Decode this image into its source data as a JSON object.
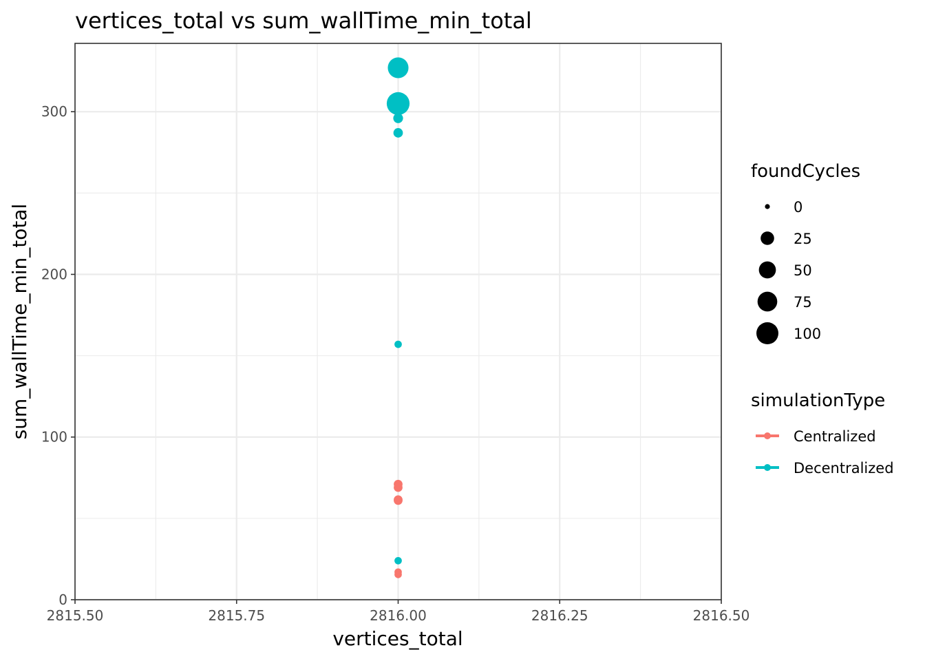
{
  "chart_data": {
    "type": "scatter",
    "title": "vertices_total  vs  sum_wallTime_min_total",
    "xlabel": "vertices_total",
    "ylabel": "sum_wallTime_min_total",
    "xlim": [
      2815.5,
      2816.5
    ],
    "ylim": [
      0,
      342
    ],
    "x_ticks": [
      "2815.50",
      "2815.75",
      "2816.00",
      "2816.25",
      "2816.50"
    ],
    "y_ticks": [
      "0",
      "100",
      "200",
      "300"
    ],
    "grid": true,
    "legend_placement": "right",
    "size_legend": {
      "title": "foundCycles",
      "entries": [
        {
          "label": "0",
          "value": 0
        },
        {
          "label": "25",
          "value": 25
        },
        {
          "label": "50",
          "value": 50
        },
        {
          "label": "75",
          "value": 75
        },
        {
          "label": "100",
          "value": 100
        }
      ]
    },
    "color_legend": {
      "title": "simulationType",
      "entries": [
        {
          "label": "Centralized",
          "color": "#F8766D"
        },
        {
          "label": "Decentralized",
          "color": "#00BFC4"
        }
      ]
    },
    "series": [
      {
        "name": "Centralized",
        "color": "#F8766D",
        "points": [
          {
            "x": 2816,
            "y": 71,
            "foundCycles": 5
          },
          {
            "x": 2816,
            "y": 69,
            "foundCycles": 5
          },
          {
            "x": 2816,
            "y": 61.5,
            "foundCycles": 5
          },
          {
            "x": 2816,
            "y": 61,
            "foundCycles": 5
          },
          {
            "x": 2816,
            "y": 17,
            "foundCycles": 2
          },
          {
            "x": 2816,
            "y": 15.5,
            "foundCycles": 2
          }
        ]
      },
      {
        "name": "Decentralized",
        "color": "#00BFC4",
        "points": [
          {
            "x": 2816,
            "y": 327,
            "foundCycles": 85
          },
          {
            "x": 2816,
            "y": 305,
            "foundCycles": 110
          },
          {
            "x": 2816,
            "y": 296,
            "foundCycles": 8
          },
          {
            "x": 2816,
            "y": 287,
            "foundCycles": 7
          },
          {
            "x": 2816,
            "y": 157,
            "foundCycles": 2
          },
          {
            "x": 2816,
            "y": 24,
            "foundCycles": 2
          }
        ]
      }
    ]
  }
}
